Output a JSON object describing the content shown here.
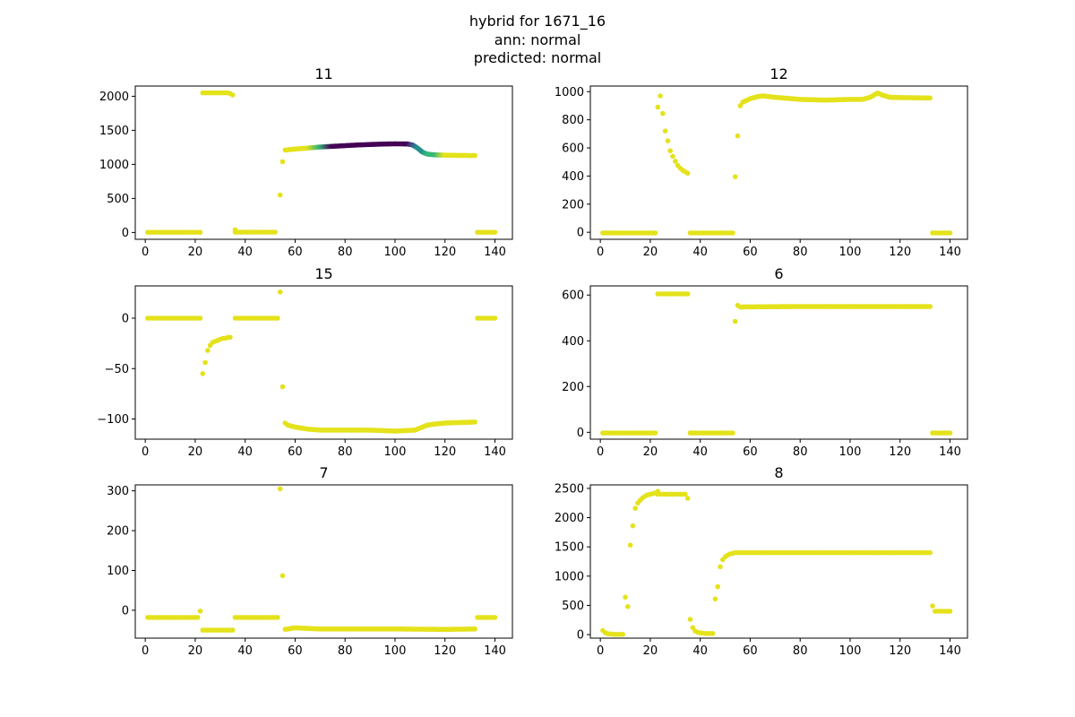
{
  "figure": {
    "title_lines": [
      "hybrid for 1671_16",
      "ann: normal",
      "predicted: normal"
    ]
  },
  "colors": {
    "yellow": "#e4e21b",
    "green": "#35b779",
    "teal": "#21918c",
    "blue": "#3b528b",
    "purple": "#440154"
  },
  "chart_data": [
    {
      "type": "scatter",
      "title": "11",
      "xlim": [
        -4,
        147
      ],
      "ylim": [
        -100,
        2150
      ],
      "xticks": [
        0,
        20,
        40,
        60,
        80,
        100,
        120,
        140
      ],
      "yticks": [
        0,
        500,
        1000,
        1500,
        2000
      ],
      "segments": [
        {
          "x": [
            1,
            22
          ],
          "y": [
            3,
            3
          ],
          "color": "yellow"
        },
        {
          "x": [
            23,
            33
          ],
          "y": [
            2050,
            2050
          ],
          "color": "yellow"
        },
        {
          "x": [
            34,
            35
          ],
          "y": [
            2040,
            2020
          ],
          "color": "yellow"
        },
        {
          "x": [
            36,
            52
          ],
          "y": [
            5,
            5
          ],
          "color": "yellow"
        },
        {
          "x": [
            133,
            140
          ],
          "y": [
            3,
            3
          ],
          "color": "yellow"
        }
      ],
      "points": [
        [
          36,
          40
        ],
        [
          54,
          550
        ],
        [
          55,
          1040
        ]
      ],
      "gradient_line": {
        "x": [
          56,
          60,
          65,
          70,
          75,
          80,
          85,
          90,
          95,
          100,
          105,
          107,
          109,
          111,
          113,
          116,
          120,
          125,
          132
        ],
        "y": [
          1210,
          1225,
          1240,
          1255,
          1265,
          1275,
          1285,
          1292,
          1298,
          1302,
          1300,
          1285,
          1240,
          1180,
          1150,
          1140,
          1135,
          1132,
          1130
        ],
        "colors": [
          "yellow",
          "yellow",
          "yellow",
          "green",
          "purple",
          "purple",
          "purple",
          "purple",
          "purple",
          "purple",
          "purple",
          "blue",
          "teal",
          "teal",
          "green",
          "green",
          "yellow",
          "yellow",
          "yellow"
        ]
      }
    },
    {
      "type": "scatter",
      "title": "12",
      "xlim": [
        -4,
        147
      ],
      "ylim": [
        -50,
        1040
      ],
      "xticks": [
        0,
        20,
        40,
        60,
        80,
        100,
        120,
        140
      ],
      "yticks": [
        0,
        200,
        400,
        600,
        800,
        1000
      ],
      "segments": [
        {
          "x": [
            1,
            22
          ],
          "y": [
            -5,
            -5
          ],
          "color": "yellow"
        },
        {
          "x": [
            36,
            53
          ],
          "y": [
            -5,
            -5
          ],
          "color": "yellow"
        },
        {
          "x": [
            133,
            140
          ],
          "y": [
            -5,
            -5
          ],
          "color": "yellow"
        }
      ],
      "points": [
        [
          23,
          890
        ],
        [
          24,
          970
        ],
        [
          25,
          845
        ],
        [
          26,
          720
        ],
        [
          27,
          650
        ],
        [
          28,
          580
        ],
        [
          29,
          540
        ],
        [
          30,
          505
        ],
        [
          31,
          475
        ],
        [
          32,
          455
        ],
        [
          33,
          440
        ],
        [
          34,
          430
        ],
        [
          35,
          420
        ],
        [
          54,
          395
        ],
        [
          55,
          685
        ],
        [
          56,
          900
        ]
      ],
      "gradient_line": {
        "x": [
          57,
          60,
          63,
          65,
          70,
          80,
          90,
          100,
          105,
          108,
          111,
          113,
          116,
          120,
          132
        ],
        "y": [
          925,
          950,
          965,
          970,
          960,
          945,
          940,
          945,
          945,
          960,
          990,
          975,
          960,
          958,
          955
        ],
        "colors": [
          "yellow",
          "yellow",
          "yellow",
          "yellow",
          "yellow",
          "yellow",
          "yellow",
          "yellow",
          "yellow",
          "yellow",
          "yellow",
          "yellow",
          "yellow",
          "yellow",
          "yellow"
        ]
      }
    },
    {
      "type": "scatter",
      "title": "15",
      "xlim": [
        -4,
        147
      ],
      "ylim": [
        -120,
        32
      ],
      "xticks": [
        0,
        20,
        40,
        60,
        80,
        100,
        120,
        140
      ],
      "yticks": [
        0,
        -50,
        -100
      ],
      "segments": [
        {
          "x": [
            1,
            22
          ],
          "y": [
            0,
            0
          ],
          "color": "yellow"
        },
        {
          "x": [
            36,
            53
          ],
          "y": [
            0,
            0
          ],
          "color": "yellow"
        },
        {
          "x": [
            133,
            140
          ],
          "y": [
            0,
            0
          ],
          "color": "yellow"
        }
      ],
      "points": [
        [
          23,
          -55
        ],
        [
          24,
          -44
        ],
        [
          25,
          -32
        ],
        [
          26,
          -27
        ],
        [
          27,
          -24
        ],
        [
          28,
          -23
        ],
        [
          29,
          -22
        ],
        [
          30,
          -21
        ],
        [
          31,
          -20
        ],
        [
          32,
          -20
        ],
        [
          33,
          -19
        ],
        [
          34,
          -19
        ],
        [
          54,
          26
        ],
        [
          55,
          -68
        ],
        [
          56,
          -104
        ]
      ],
      "gradient_line": {
        "x": [
          57,
          60,
          65,
          70,
          80,
          90,
          100,
          108,
          110,
          113,
          116,
          120,
          132
        ],
        "y": [
          -106,
          -108,
          -110,
          -111,
          -111,
          -111,
          -112,
          -111,
          -109,
          -106,
          -105,
          -104,
          -103
        ],
        "colors": [
          "yellow",
          "yellow",
          "yellow",
          "yellow",
          "yellow",
          "yellow",
          "yellow",
          "yellow",
          "yellow",
          "yellow",
          "yellow",
          "yellow",
          "yellow"
        ]
      }
    },
    {
      "type": "scatter",
      "title": "6",
      "xlim": [
        -4,
        147
      ],
      "ylim": [
        -30,
        640
      ],
      "xticks": [
        0,
        20,
        40,
        60,
        80,
        100,
        120,
        140
      ],
      "yticks": [
        0,
        200,
        400,
        600
      ],
      "segments": [
        {
          "x": [
            1,
            22
          ],
          "y": [
            -3,
            -3
          ],
          "color": "yellow"
        },
        {
          "x": [
            23,
            35
          ],
          "y": [
            605,
            605
          ],
          "color": "yellow"
        },
        {
          "x": [
            36,
            53
          ],
          "y": [
            -3,
            -3
          ],
          "color": "yellow"
        },
        {
          "x": [
            133,
            140
          ],
          "y": [
            -3,
            -3
          ],
          "color": "yellow"
        }
      ],
      "points": [
        [
          54,
          485
        ],
        [
          55,
          555
        ]
      ],
      "gradient_line": {
        "x": [
          56,
          80,
          100,
          132
        ],
        "y": [
          548,
          550,
          550,
          550
        ],
        "colors": [
          "yellow",
          "yellow",
          "yellow",
          "yellow"
        ]
      }
    },
    {
      "type": "scatter",
      "title": "7",
      "xlim": [
        -4,
        147
      ],
      "ylim": [
        -70,
        315
      ],
      "xticks": [
        0,
        20,
        40,
        60,
        80,
        100,
        120,
        140
      ],
      "yticks": [
        0,
        100,
        200,
        300
      ],
      "segments": [
        {
          "x": [
            1,
            21
          ],
          "y": [
            -18,
            -18
          ],
          "color": "yellow"
        },
        {
          "x": [
            23,
            35
          ],
          "y": [
            -50,
            -50
          ],
          "color": "yellow"
        },
        {
          "x": [
            36,
            53
          ],
          "y": [
            -18,
            -18
          ],
          "color": "yellow"
        },
        {
          "x": [
            133,
            140
          ],
          "y": [
            -18,
            -18
          ],
          "color": "yellow"
        }
      ],
      "points": [
        [
          22,
          -2
        ],
        [
          54,
          305
        ],
        [
          55,
          87
        ]
      ],
      "gradient_line": {
        "x": [
          56,
          60,
          70,
          80,
          100,
          120,
          132
        ],
        "y": [
          -48,
          -44,
          -47,
          -47,
          -47,
          -48,
          -47
        ],
        "colors": [
          "yellow",
          "yellow",
          "yellow",
          "yellow",
          "yellow",
          "yellow",
          "yellow"
        ]
      }
    },
    {
      "type": "scatter",
      "title": "8",
      "xlim": [
        -4,
        147
      ],
      "ylim": [
        -60,
        2560
      ],
      "xticks": [
        0,
        20,
        40,
        60,
        80,
        100,
        120,
        140
      ],
      "yticks": [
        0,
        500,
        1000,
        1500,
        2000,
        2500
      ],
      "segments": [
        {
          "x": [
            23,
            34
          ],
          "y": [
            2400,
            2400
          ],
          "color": "yellow"
        },
        {
          "x": [
            55,
            132
          ],
          "y": [
            1400,
            1400
          ],
          "color": "yellow"
        },
        {
          "x": [
            134,
            140
          ],
          "y": [
            400,
            400
          ],
          "color": "yellow"
        }
      ],
      "points": [
        [
          1,
          70
        ],
        [
          2,
          30
        ],
        [
          3,
          15
        ],
        [
          4,
          10
        ],
        [
          5,
          8
        ],
        [
          6,
          5
        ],
        [
          7,
          5
        ],
        [
          8,
          5
        ],
        [
          9,
          5
        ],
        [
          10,
          640
        ],
        [
          11,
          480
        ],
        [
          12,
          1530
        ],
        [
          13,
          1860
        ],
        [
          14,
          2160
        ],
        [
          15,
          2250
        ],
        [
          16,
          2300
        ],
        [
          17,
          2340
        ],
        [
          18,
          2370
        ],
        [
          19,
          2390
        ],
        [
          20,
          2400
        ],
        [
          21,
          2410
        ],
        [
          22,
          2420
        ],
        [
          23,
          2450
        ],
        [
          35,
          2330
        ],
        [
          36,
          260
        ],
        [
          37,
          120
        ],
        [
          38,
          60
        ],
        [
          39,
          40
        ],
        [
          40,
          30
        ],
        [
          41,
          25
        ],
        [
          42,
          20
        ],
        [
          43,
          20
        ],
        [
          44,
          20
        ],
        [
          45,
          20
        ],
        [
          46,
          610
        ],
        [
          47,
          820
        ],
        [
          48,
          1160
        ],
        [
          49,
          1280
        ],
        [
          50,
          1330
        ],
        [
          51,
          1360
        ],
        [
          52,
          1380
        ],
        [
          53,
          1390
        ],
        [
          54,
          1400
        ],
        [
          133,
          490
        ]
      ]
    }
  ]
}
